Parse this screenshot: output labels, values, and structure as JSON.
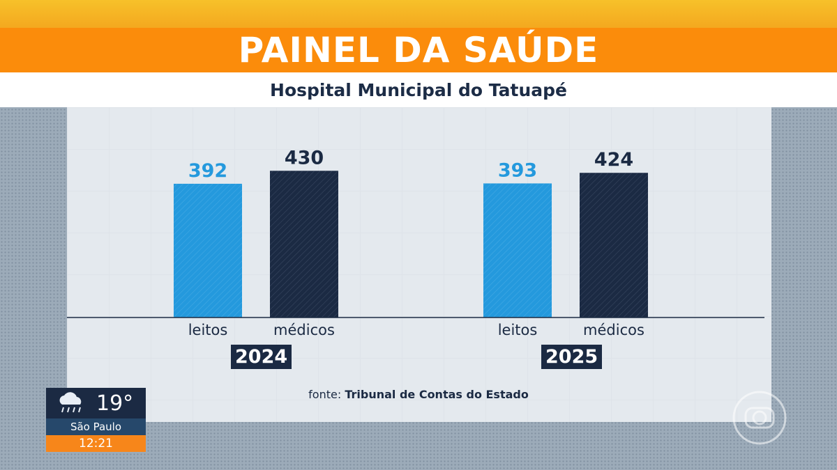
{
  "header": {
    "title": "PAINEL DA SAÚDE",
    "subtitle": "Hospital Municipal do Tatuapé"
  },
  "colors": {
    "leitos": "#2499dd",
    "medicos": "#1b2a43",
    "accent": "#fb8c0b"
  },
  "chart_data": {
    "type": "bar",
    "groups": [
      "2024",
      "2025"
    ],
    "categories": [
      "leitos",
      "médicos"
    ],
    "series": [
      {
        "name": "leitos",
        "values": [
          392,
          393
        ]
      },
      {
        "name": "médicos",
        "values": [
          430,
          424
        ]
      }
    ],
    "title": "PAINEL DA SAÚDE",
    "subtitle": "Hospital Municipal do Tatuapé",
    "xlabel": "",
    "ylabel": "",
    "grid": false,
    "legend": "none"
  },
  "footer": {
    "source_prefix": "fonte:",
    "source_name": "Tribunal de Contas do Estado"
  },
  "weather": {
    "icon": "rain-cloud-icon",
    "temperature": "19°",
    "city": "São Paulo",
    "time": "12:21"
  },
  "broadcaster_logo": "globo-logo-icon"
}
